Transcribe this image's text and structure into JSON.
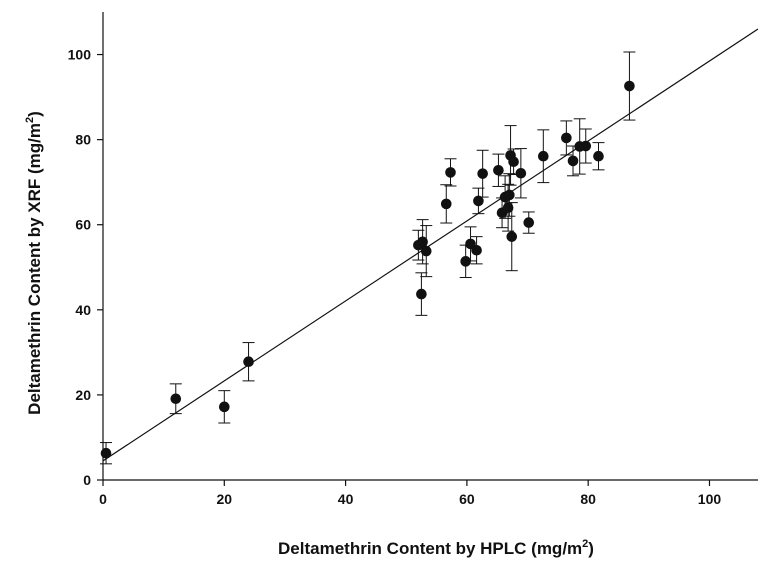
{
  "chart_data": {
    "type": "scatter",
    "xlabel": {
      "text": "Deltamethrin Content by HPLC (mg/m",
      "sup": "2",
      "close": ")"
    },
    "ylabel": {
      "text": "Deltamethrin Content by XRF (mg/m",
      "sup": "2",
      "close": ")"
    },
    "xlim": [
      0,
      108
    ],
    "ylim": [
      0,
      110
    ],
    "x_ticks": [
      0,
      20,
      40,
      60,
      80,
      100
    ],
    "y_ticks": [
      0,
      20,
      40,
      60,
      80,
      100
    ],
    "x_tick_labels": [
      "0",
      "20",
      "40",
      "60",
      "80",
      "100"
    ],
    "y_tick_labels": [
      "0",
      "20",
      "40",
      "60",
      "80",
      "100"
    ],
    "grid": false,
    "legend": "none",
    "colors": {
      "marker": "#111111",
      "line": "#111111"
    },
    "fit_line": {
      "x": [
        0,
        108
      ],
      "y": [
        4.5,
        106
      ]
    },
    "points": [
      {
        "x": 0.5,
        "y": 6.3,
        "err": 2.5
      },
      {
        "x": 12,
        "y": 19.1,
        "err": 3.5
      },
      {
        "x": 20,
        "y": 17.2,
        "err": 3.8
      },
      {
        "x": 24,
        "y": 27.8,
        "err": 4.5
      },
      {
        "x": 52,
        "y": 55.2,
        "err": 3.5
      },
      {
        "x": 52.5,
        "y": 43.7,
        "err": 5.0
      },
      {
        "x": 52.7,
        "y": 56.0,
        "err": 5.2
      },
      {
        "x": 53.3,
        "y": 53.8,
        "err": 6.0
      },
      {
        "x": 56.6,
        "y": 64.9,
        "err": 4.5
      },
      {
        "x": 57.3,
        "y": 72.3,
        "err": 3.2
      },
      {
        "x": 59.8,
        "y": 51.4,
        "err": 3.8
      },
      {
        "x": 60.6,
        "y": 55.5,
        "err": 4.0
      },
      {
        "x": 61.6,
        "y": 54.0,
        "err": 3.2
      },
      {
        "x": 61.9,
        "y": 65.6,
        "err": 3.0
      },
      {
        "x": 62.6,
        "y": 72.0,
        "err": 5.5
      },
      {
        "x": 65.2,
        "y": 72.8,
        "err": 3.8
      },
      {
        "x": 65.8,
        "y": 62.8,
        "err": 3.5
      },
      {
        "x": 66.3,
        "y": 66.5,
        "err": 5.0
      },
      {
        "x": 66.8,
        "y": 64.0,
        "err": 5.5
      },
      {
        "x": 67.0,
        "y": 67.0,
        "err": 5.0
      },
      {
        "x": 67.2,
        "y": 76.3,
        "err": 7.0
      },
      {
        "x": 67.4,
        "y": 57.2,
        "err": 8.0
      },
      {
        "x": 67.7,
        "y": 74.8,
        "err": 3.0
      },
      {
        "x": 68.9,
        "y": 72.1,
        "err": 5.8
      },
      {
        "x": 70.2,
        "y": 60.5,
        "err": 2.5
      },
      {
        "x": 72.6,
        "y": 76.1,
        "err": 6.2
      },
      {
        "x": 76.4,
        "y": 80.4,
        "err": 4.0
      },
      {
        "x": 77.5,
        "y": 75.0,
        "err": 3.5
      },
      {
        "x": 78.6,
        "y": 78.4,
        "err": 6.5
      },
      {
        "x": 79.6,
        "y": 78.5,
        "err": 4.0
      },
      {
        "x": 81.7,
        "y": 76.1,
        "err": 3.2
      },
      {
        "x": 86.8,
        "y": 92.6,
        "err": 8.0
      }
    ]
  }
}
